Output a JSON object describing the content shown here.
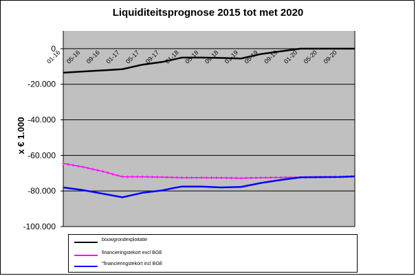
{
  "chart_data": {
    "type": "line",
    "title": "Liquiditeitsprognose  2015 tot  met 2020",
    "ylabel": "x € 1.000",
    "xlabel": "",
    "ylim": [
      -100000,
      10000
    ],
    "yticks": [
      0,
      -20000,
      -40000,
      -60000,
      -80000,
      -100000
    ],
    "ytick_labels": [
      "0",
      "-20.000",
      "-40.000",
      "-60.000",
      "-80.000",
      "-100.000"
    ],
    "x_tick_labels": [
      "01-16",
      "05-16",
      "09-16",
      "01-17",
      "05-17",
      "09-17",
      "01-18",
      "05-18",
      "09-18",
      "01-19",
      "05-19",
      "09-19",
      "01-20",
      "05-20",
      "09-20"
    ],
    "x_start": "01-16",
    "x_end": "12-20",
    "grid": "horizontal",
    "legend_position": "bottom",
    "background": "#c0c0c0",
    "series": [
      {
        "name": "bouwgrondexploitatie",
        "color": "#000000",
        "marker": "none",
        "points": [
          [
            "01-16",
            -13500
          ],
          [
            "05-16",
            -12800
          ],
          [
            "09-16",
            -12200
          ],
          [
            "01-17",
            -11500
          ],
          [
            "05-17",
            -9000
          ],
          [
            "09-17",
            -7500
          ],
          [
            "01-18",
            -5000
          ],
          [
            "05-18",
            -5000
          ],
          [
            "09-18",
            -5200
          ],
          [
            "01-19",
            -5500
          ],
          [
            "05-19",
            -3000
          ],
          [
            "09-19",
            -1500
          ],
          [
            "01-20",
            0
          ],
          [
            "05-20",
            0
          ],
          [
            "09-20",
            0
          ],
          [
            "12-20",
            0
          ]
        ]
      },
      {
        "name": "financieringstekort excl BGE",
        "color": "#ff00ff",
        "marker": "plus",
        "points": [
          [
            "01-16",
            -64500
          ],
          [
            "05-16",
            -66500
          ],
          [
            "09-16",
            -69000
          ],
          [
            "01-17",
            -72000
          ],
          [
            "05-17",
            -72000
          ],
          [
            "09-17",
            -72200
          ],
          [
            "01-18",
            -72500
          ],
          [
            "05-18",
            -72500
          ],
          [
            "09-18",
            -72600
          ],
          [
            "01-19",
            -72800
          ],
          [
            "05-19",
            -72500
          ],
          [
            "09-19",
            -72400
          ],
          [
            "01-20",
            -72300
          ],
          [
            "05-20",
            -72200
          ],
          [
            "09-20",
            -72100
          ],
          [
            "12-20",
            -71800
          ]
        ]
      },
      {
        "name": "\"financieringstekort incl BGE",
        "color": "#0000ff",
        "marker": "none",
        "points": [
          [
            "01-16",
            -78000
          ],
          [
            "05-16",
            -79500
          ],
          [
            "09-16",
            -81500
          ],
          [
            "01-17",
            -83500
          ],
          [
            "05-17",
            -81000
          ],
          [
            "09-17",
            -79700
          ],
          [
            "11-17",
            -78500
          ],
          [
            "01-18",
            -77500
          ],
          [
            "05-18",
            -77500
          ],
          [
            "09-18",
            -78000
          ],
          [
            "01-19",
            -77700
          ],
          [
            "05-19",
            -75500
          ],
          [
            "09-19",
            -73800
          ],
          [
            "01-20",
            -72300
          ],
          [
            "05-20",
            -72200
          ],
          [
            "09-20",
            -72100
          ],
          [
            "12-20",
            -71800
          ]
        ]
      }
    ]
  }
}
